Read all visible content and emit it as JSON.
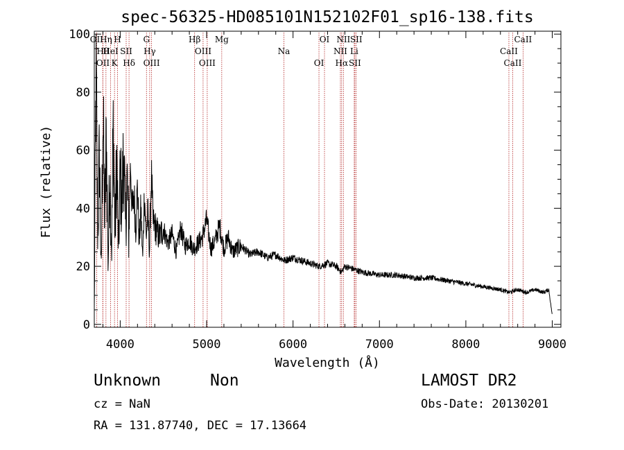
{
  "chart_data": {
    "type": "line",
    "title": "spec-56325-HD085101N152102F01_sp16-138.fits",
    "xlabel": "Wavelength (Å)",
    "ylabel": "Flux (relative)",
    "xlim": [
      3700,
      9100
    ],
    "ylim": [
      -1,
      101
    ],
    "x_ticks": [
      4000,
      5000,
      6000,
      7000,
      8000,
      9000
    ],
    "x_tick_labels": [
      "4000",
      "5000",
      "6000",
      "7000",
      "8000",
      "9000"
    ],
    "y_ticks": [
      0,
      20,
      40,
      60,
      80,
      100
    ],
    "y_tick_labels": [
      "0",
      "20",
      "40",
      "60",
      "80",
      "100"
    ],
    "grid": false,
    "series": [
      {
        "name": "flux",
        "x": [
          3700,
          3720,
          3740,
          3760,
          3780,
          3800,
          3820,
          3840,
          3860,
          3880,
          3900,
          3920,
          3940,
          3960,
          3980,
          4000,
          4020,
          4040,
          4060,
          4080,
          4100,
          4120,
          4140,
          4160,
          4180,
          4200,
          4220,
          4240,
          4260,
          4280,
          4300,
          4320,
          4340,
          4360,
          4380,
          4400,
          4450,
          4500,
          4550,
          4600,
          4650,
          4700,
          4750,
          4800,
          4850,
          4900,
          4950,
          5000,
          5050,
          5100,
          5150,
          5200,
          5250,
          5300,
          5400,
          5500,
          5600,
          5700,
          5800,
          5900,
          6000,
          6100,
          6200,
          6300,
          6400,
          6500,
          6560,
          6600,
          6700,
          6800,
          7000,
          7200,
          7400,
          7600,
          7800,
          8000,
          8200,
          8400,
          8500,
          8600,
          8700,
          8800,
          8900,
          8960,
          9000
        ],
        "y": [
          5,
          90,
          30,
          60,
          15,
          75,
          35,
          65,
          20,
          55,
          25,
          70,
          30,
          58,
          24,
          52,
          40,
          62,
          34,
          50,
          30,
          56,
          38,
          45,
          33,
          48,
          28,
          40,
          22,
          46,
          30,
          38,
          25,
          52,
          35,
          34,
          30,
          33,
          28,
          31,
          25,
          33,
          27,
          29,
          26,
          28,
          30,
          36,
          26,
          29,
          34,
          26,
          30,
          25,
          27,
          24,
          25,
          23,
          24,
          22,
          23,
          22,
          21,
          20,
          21,
          20,
          18,
          20,
          19,
          18,
          17,
          17,
          16,
          16,
          15,
          14,
          13,
          12,
          11,
          12,
          11,
          12,
          11,
          12,
          3
        ]
      }
    ],
    "line_markers": [
      {
        "label": "OII",
        "wavelength": 3727
      },
      {
        "label": "Hθ",
        "wavelength": 3798
      },
      {
        "label": "OII",
        "wavelength": 3800
      },
      {
        "label": "Hη",
        "wavelength": 3835
      },
      {
        "label": "HeI",
        "wavelength": 3889
      },
      {
        "label": "K",
        "wavelength": 3934
      },
      {
        "label": "H",
        "wavelength": 3969
      },
      {
        "label": "SII",
        "wavelength": 4069
      },
      {
        "label": "Hδ",
        "wavelength": 4102
      },
      {
        "label": "G",
        "wavelength": 4304
      },
      {
        "label": "Hγ",
        "wavelength": 4341
      },
      {
        "label": "OIII",
        "wavelength": 4363
      },
      {
        "label": "Hβ",
        "wavelength": 4861
      },
      {
        "label": "OIII",
        "wavelength": 4959
      },
      {
        "label": "OIII",
        "wavelength": 5007
      },
      {
        "label": "Mg",
        "wavelength": 5175
      },
      {
        "label": "Na",
        "wavelength": 5894
      },
      {
        "label": "OI",
        "wavelength": 6300
      },
      {
        "label": "OI",
        "wavelength": 6364
      },
      {
        "label": "NII",
        "wavelength": 6548
      },
      {
        "label": "Hα",
        "wavelength": 6563
      },
      {
        "label": "NII",
        "wavelength": 6583
      },
      {
        "label": "Li",
        "wavelength": 6708
      },
      {
        "label": "SII",
        "wavelength": 6716
      },
      {
        "label": "SII",
        "wavelength": 6731
      },
      {
        "label": "CaII",
        "wavelength": 8498
      },
      {
        "label": "CaII",
        "wavelength": 8542
      },
      {
        "label": "CaII",
        "wavelength": 8662
      }
    ]
  },
  "info": {
    "classification": "Unknown",
    "subclass": "Non",
    "survey": "LAMOST DR2",
    "cz": "cz = NaN",
    "obs_date": "Obs-Date: 20130201",
    "coords": "RA = 131.87740, DEC =  17.13664"
  }
}
